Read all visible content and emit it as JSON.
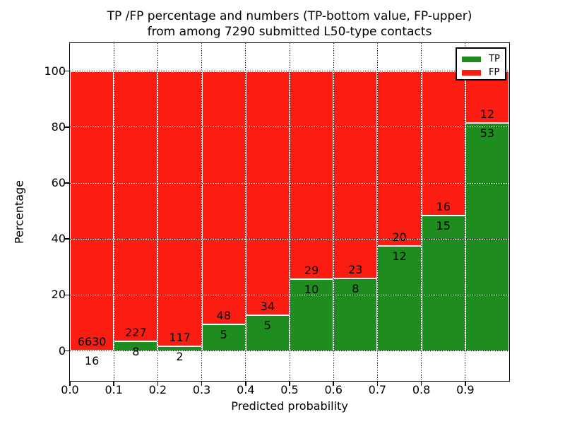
{
  "figure": {
    "title_line1": "TP /FP percentage and numbers (TP-bottom value, FP-upper)",
    "title_line2": "from among 7290 submitted L50-type contacts",
    "xlabel": "Predicted probability",
    "ylabel": "Percentage"
  },
  "legend": {
    "position": "upper right",
    "items": [
      {
        "label": "TP",
        "color": "#1e8c1e"
      },
      {
        "label": "FP",
        "color": "#fb1d12"
      }
    ]
  },
  "chart_data": {
    "type": "bar",
    "stacked": true,
    "normalized_to_percent": 100,
    "title": "TP /FP percentage and numbers (TP-bottom value, FP-upper) from among 7290 submitted L50-type contacts",
    "xlabel": "Predicted probability",
    "ylabel": "Percentage",
    "total_submitted_contacts": 7290,
    "bin_width": 0.1,
    "bins": [
      {
        "range": "0.0-0.1",
        "tp": 16,
        "fp": 6630
      },
      {
        "range": "0.1-0.2",
        "tp": 8,
        "fp": 227
      },
      {
        "range": "0.2-0.3",
        "tp": 2,
        "fp": 117
      },
      {
        "range": "0.3-0.4",
        "tp": 5,
        "fp": 48
      },
      {
        "range": "0.4-0.5",
        "tp": 5,
        "fp": 34
      },
      {
        "range": "0.5-0.6",
        "tp": 10,
        "fp": 29
      },
      {
        "range": "0.6-0.7",
        "tp": 8,
        "fp": 23
      },
      {
        "range": "0.7-0.8",
        "tp": 12,
        "fp": 20
      },
      {
        "range": "0.8-0.9",
        "tp": 15,
        "fp": 16
      },
      {
        "range": "0.9-1.0",
        "tp": 53,
        "fp": 12
      }
    ],
    "series": [
      {
        "name": "TP",
        "color": "#1e8c1e",
        "values": [
          16,
          8,
          2,
          5,
          5,
          10,
          8,
          12,
          15,
          53
        ]
      },
      {
        "name": "FP",
        "color": "#fb1d12",
        "values": [
          6630,
          227,
          117,
          48,
          34,
          29,
          23,
          20,
          16,
          12
        ]
      }
    ],
    "x_tick_labels": [
      "0.0",
      "0.1",
      "0.2",
      "0.3",
      "0.4",
      "0.5",
      "0.6",
      "0.7",
      "0.8",
      "0.9"
    ],
    "y_ticks": [
      0,
      20,
      40,
      60,
      80,
      100
    ],
    "xlim": [
      0.0,
      1.0
    ],
    "ylim": [
      -10.7,
      110
    ],
    "grid": "dotted black, drawn above bars",
    "bar_edge_color": "#ffffff",
    "legend_position": "upper right"
  }
}
